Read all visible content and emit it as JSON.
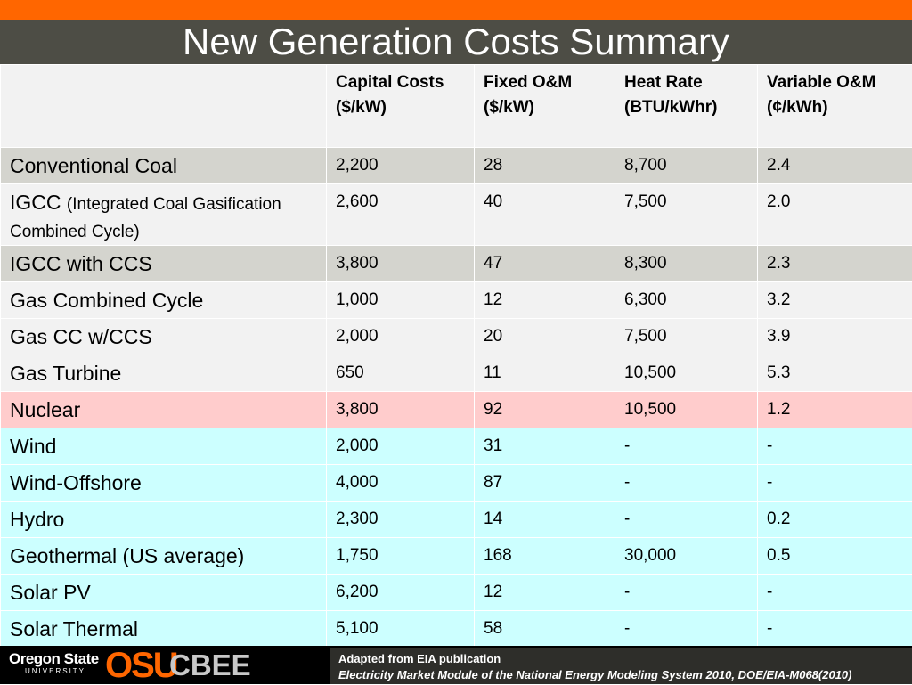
{
  "title": "New Generation Costs Summary",
  "colors": {
    "top_bar": "#ff6600",
    "title_bar": "#4d4d45",
    "row_gray": "#d4d4ce",
    "row_light": "#f2f2f2",
    "row_nuclear": "#ffcccc",
    "row_renewable": "#ccffff"
  },
  "table": {
    "headers": [
      {
        "line1": "",
        "line2": ""
      },
      {
        "line1": "Capital Costs",
        "line2": "($/kW)"
      },
      {
        "line1": "Fixed O&M",
        "line2": "($/kW)"
      },
      {
        "line1": "Heat Rate",
        "line2": "(BTU/kWhr)"
      },
      {
        "line1": "Variable O&M",
        "line2": "(¢/kWh)"
      }
    ],
    "rows": [
      {
        "name": "Conventional Coal",
        "name_detail": "",
        "values": [
          "2,200",
          "28",
          "8,700",
          "2.4"
        ]
      },
      {
        "name": "IGCC",
        "name_detail": "(Integrated Coal Gasification Combined Cycle)",
        "values": [
          "2,600",
          "40",
          "7,500",
          "2.0"
        ]
      },
      {
        "name": "IGCC with CCS",
        "name_detail": "",
        "values": [
          "3,800",
          "47",
          "8,300",
          "2.3"
        ]
      },
      {
        "name": "Gas Combined Cycle",
        "name_detail": "",
        "values": [
          "1,000",
          "12",
          "6,300",
          "3.2"
        ]
      },
      {
        "name": "Gas CC w/CCS",
        "name_detail": "",
        "values": [
          "2,000",
          "20",
          "7,500",
          "3.9"
        ]
      },
      {
        "name": "Gas Turbine",
        "name_detail": "",
        "values": [
          "650",
          "11",
          "10,500",
          "5.3"
        ]
      },
      {
        "name": "Nuclear",
        "name_detail": "",
        "values": [
          "3,800",
          "92",
          "10,500",
          "1.2"
        ]
      },
      {
        "name": "Wind",
        "name_detail": "",
        "values": [
          "2,000",
          "31",
          "-",
          "-"
        ]
      },
      {
        "name": "Wind-Offshore",
        "name_detail": "",
        "values": [
          "4,000",
          "87",
          "-",
          "-"
        ]
      },
      {
        "name": "Hydro",
        "name_detail": "",
        "values": [
          "2,300",
          "14",
          "-",
          "0.2"
        ]
      },
      {
        "name": "Geothermal (US average)",
        "name_detail": "",
        "values": [
          "1,750",
          "168",
          "30,000",
          "0.5"
        ]
      },
      {
        "name": "Solar PV",
        "name_detail": "",
        "values": [
          "6,200",
          "12",
          "-",
          "-"
        ]
      },
      {
        "name": "Solar Thermal",
        "name_detail": "",
        "values": [
          "5,100",
          "58",
          "-",
          "-"
        ]
      }
    ]
  },
  "footer": {
    "university": "Oregon State",
    "university_sub": "UNIVERSITY",
    "osu_mark": "OSU",
    "program": "CBEE",
    "source_line1": "Adapted from EIA publication",
    "source_line2": "Electricity Market Module of the National Energy Modeling System 2010, DOE/EIA-M068(2010)"
  }
}
